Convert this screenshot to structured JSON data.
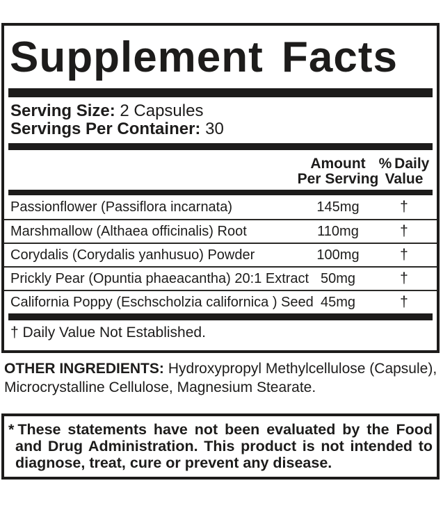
{
  "colors": {
    "ink": "#1d1c1b",
    "paper": "#ffffff"
  },
  "supplement_facts": {
    "title": "Supplement Facts",
    "serving_size": {
      "label": "Serving Size:",
      "value": "2 Capsules"
    },
    "servings_per_container": {
      "label": "Servings Per Container:",
      "value": "30"
    },
    "columns": {
      "amount_line1": "Amount",
      "amount_line2": "Per Serving",
      "daily_value_line1": "% Daily",
      "daily_value_line2": "Value"
    },
    "ingredients": [
      {
        "name": "Passionflower (Passiflora incarnata)",
        "amount": "145mg",
        "daily_value": "†"
      },
      {
        "name": "Marshmallow (Althaea officinalis) Root",
        "amount": "110mg",
        "daily_value": "†"
      },
      {
        "name": "Corydalis (Corydalis yanhusuo) Powder",
        "amount": "100mg",
        "daily_value": "†"
      },
      {
        "name": "Prickly Pear (Opuntia phaeacantha) 20:1 Extract",
        "amount": "50mg",
        "daily_value": "†"
      },
      {
        "name": "California Poppy (Eschscholzia californica ) Seed",
        "amount": "45mg",
        "daily_value": "†"
      }
    ],
    "footnote": "† Daily Value Not Established."
  },
  "other_ingredients": {
    "label": "OTHER INGREDIENTS:",
    "text": "Hydroxypropyl Methylcellulose (Capsule), Microcrystalline Cellulose, Magnesium Stearate."
  },
  "disclaimer": {
    "marker": "*",
    "text": "These statements have not been evaluated by the Food and Drug Administration. This product is not intended to diagnose, treat, cure or prevent any disease."
  }
}
